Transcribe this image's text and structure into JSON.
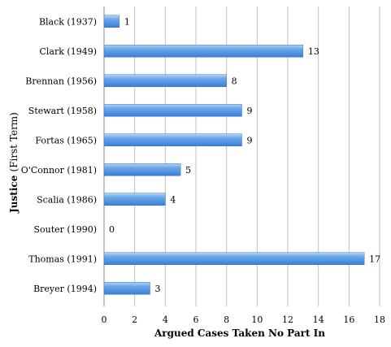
{
  "chart_data": {
    "type": "bar",
    "orientation": "horizontal",
    "categories": [
      "Black (1937)",
      "Clark (1949)",
      "Brennan (1956)",
      "Stewart (1958)",
      "Fortas (1965)",
      "O'Connor (1981)",
      "Scalia (1986)",
      "Souter (1990)",
      "Thomas (1991)",
      "Breyer (1994)"
    ],
    "values": [
      1,
      13,
      8,
      9,
      9,
      5,
      4,
      0,
      17,
      3
    ],
    "data_labels": [
      "1",
      "13",
      "8",
      "9",
      "9",
      "5",
      "4",
      "0",
      "17",
      "3"
    ],
    "xlabel": "Argued Cases Taken No Part In",
    "ylabel": "Justice",
    "ylabel_sub": "(First Term)",
    "xlim": [
      0,
      18
    ],
    "xticks": [
      0,
      2,
      4,
      6,
      8,
      10,
      12,
      14,
      16,
      18
    ],
    "grid": "vertical lines at x ticks",
    "legend": "none",
    "bar_color": "#4a8fe0",
    "bar_highlight": "#a9ccf5",
    "grid_color": "#bfbfbf"
  }
}
